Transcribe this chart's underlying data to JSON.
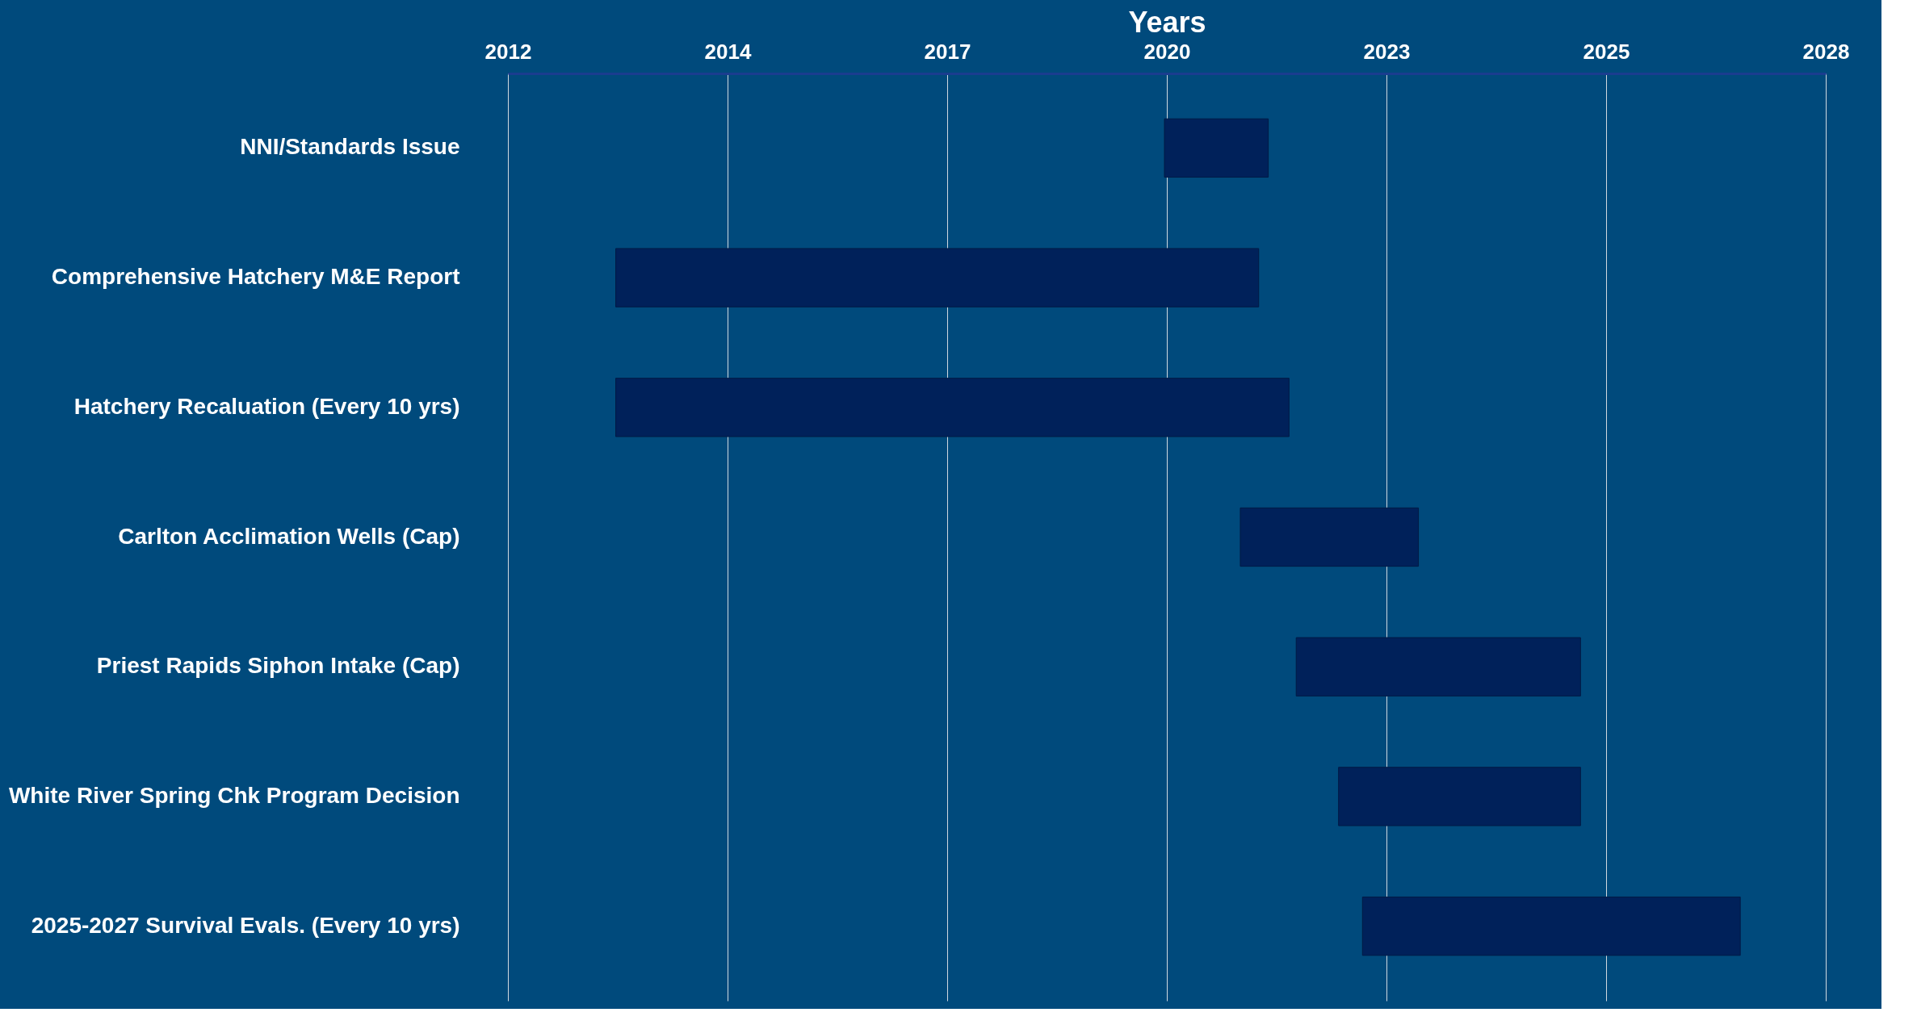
{
  "chart_data": {
    "type": "bar",
    "orientation": "horizontal",
    "xlabel": "Years",
    "categories": [
      "NNI/Standards  Issue",
      "Comprehensive Hatchery M&E Report",
      "Hatchery Recaluation (Every 10 yrs)",
      "Carlton Acclimation Wells (Cap)",
      "Priest Rapids Siphon Intake (Cap)",
      "White River Spring Chk Program Decision",
      "2025-2027 Survival Evals. (Every 10 yrs)"
    ],
    "base": [
      2019.82,
      2012.95,
      2012.95,
      2020.77,
      2021.47,
      2022.0,
      2022.3
    ],
    "values": [
      1.3,
      8.05,
      8.43,
      2.23,
      3.56,
      3.03,
      4.73
    ],
    "color": "#00215a",
    "xlim": [
      2011.6,
      2028.1
    ],
    "xticks": [
      {
        "value": 2011.6,
        "label": "2012"
      },
      {
        "value": 2014.35,
        "label": "2014"
      },
      {
        "value": 2017.1,
        "label": "2017"
      },
      {
        "value": 2019.85,
        "label": "2020"
      },
      {
        "value": 2022.6,
        "label": "2023"
      },
      {
        "value": 2025.35,
        "label": "2025"
      },
      {
        "value": 2028.1,
        "label": "2028"
      }
    ],
    "grid": "x"
  }
}
